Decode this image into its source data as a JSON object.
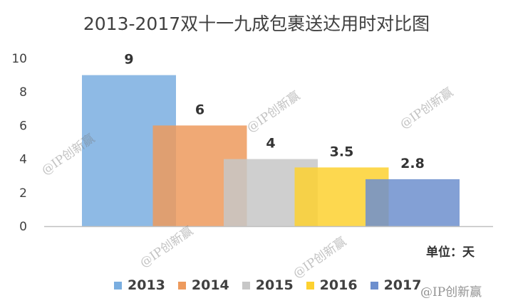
{
  "chart_data": {
    "type": "bar",
    "title": "2013-2017双十一九成包裹送达用时对比图",
    "unit_label": "单位：天",
    "categories": [
      "2013",
      "2014",
      "2015",
      "2016",
      "2017"
    ],
    "values": [
      9,
      6,
      4,
      3.5,
      2.8
    ],
    "value_labels": [
      "9",
      "6",
      "4",
      "3.5",
      "2.8"
    ],
    "colors": [
      "#7aaee0",
      "#ed9a5d",
      "#c7c7c7",
      "#fdd130",
      "#6d8fce"
    ],
    "ylim": [
      0,
      10
    ],
    "yticks": [
      "0",
      "2",
      "4",
      "6",
      "8",
      "10"
    ],
    "legend_position": "bottom",
    "grid": false
  },
  "watermark": "@IP创新赢"
}
